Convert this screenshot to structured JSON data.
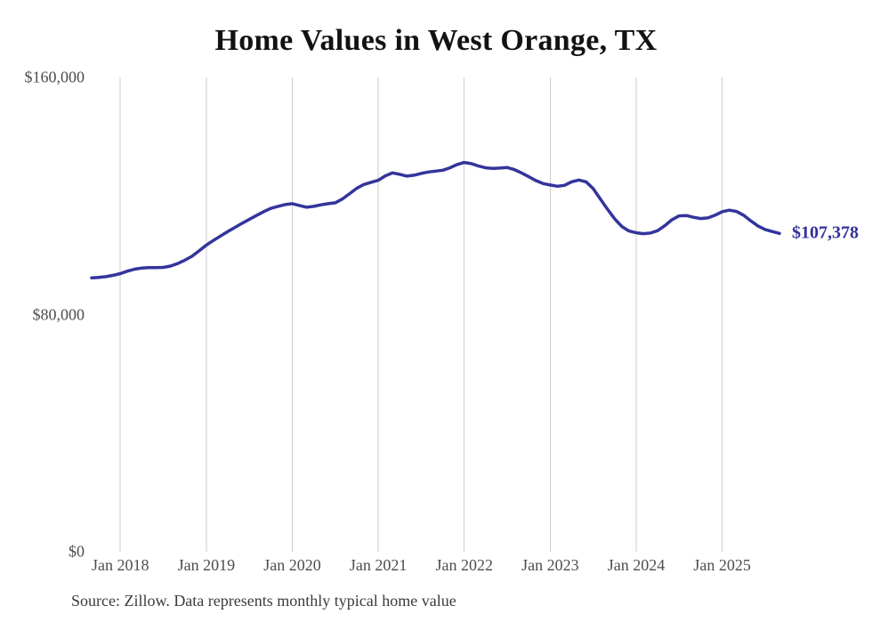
{
  "title": "Home Values in West Orange, TX",
  "source_note": "Source: Zillow. Data represents monthly typical home value",
  "colors": {
    "line": "#34349c",
    "end_label": "#31319b",
    "grid": "#cccccc",
    "axis_text": "#4d4d4d",
    "title_text": "#121212",
    "background": "#ffffff"
  },
  "y_axis": {
    "ticks": [
      {
        "label": "$160,000",
        "value": 160000
      },
      {
        "label": "$80,000",
        "value": 80000
      },
      {
        "label": "$0",
        "value": 0
      }
    ]
  },
  "x_axis": {
    "tick_labels": [
      "Jan 2018",
      "Jan 2019",
      "Jan 2020",
      "Jan 2021",
      "Jan 2022",
      "Jan 2023",
      "Jan 2024",
      "Jan 2025"
    ]
  },
  "chart_data": {
    "type": "line",
    "title": "Home Values in West Orange, TX",
    "xlabel": "",
    "ylabel": "",
    "ylim": [
      0,
      160000
    ],
    "grid": "vertical-only-january",
    "legend": "none",
    "series_name": "Monthly typical home value",
    "end_label": "$107,378",
    "last_value": 107378,
    "x": [
      "2017-09",
      "2017-10",
      "2017-11",
      "2017-12",
      "2018-01",
      "2018-02",
      "2018-03",
      "2018-04",
      "2018-05",
      "2018-06",
      "2018-07",
      "2018-08",
      "2018-09",
      "2018-10",
      "2018-11",
      "2018-12",
      "2019-01",
      "2019-02",
      "2019-03",
      "2019-04",
      "2019-05",
      "2019-06",
      "2019-07",
      "2019-08",
      "2019-09",
      "2019-10",
      "2019-11",
      "2019-12",
      "2020-01",
      "2020-02",
      "2020-03",
      "2020-04",
      "2020-05",
      "2020-06",
      "2020-07",
      "2020-08",
      "2020-09",
      "2020-10",
      "2020-11",
      "2020-12",
      "2021-01",
      "2021-02",
      "2021-03",
      "2021-04",
      "2021-05",
      "2021-06",
      "2021-07",
      "2021-08",
      "2021-09",
      "2021-10",
      "2021-11",
      "2021-12",
      "2022-01",
      "2022-02",
      "2022-03",
      "2022-04",
      "2022-05",
      "2022-06",
      "2022-07",
      "2022-08",
      "2022-09",
      "2022-10",
      "2022-11",
      "2022-12",
      "2023-01",
      "2023-02",
      "2023-03",
      "2023-04",
      "2023-05",
      "2023-06",
      "2023-07",
      "2023-08",
      "2023-09",
      "2023-10",
      "2023-11",
      "2023-12",
      "2024-01",
      "2024-02",
      "2024-03",
      "2024-04",
      "2024-05",
      "2024-06",
      "2024-07",
      "2024-08",
      "2024-09",
      "2024-10",
      "2024-11",
      "2024-12",
      "2025-01",
      "2025-02",
      "2025-03",
      "2025-04",
      "2025-05",
      "2025-06",
      "2025-07",
      "2025-08",
      "2025-09"
    ],
    "values": [
      92400,
      92550,
      92800,
      93250,
      93800,
      94650,
      95300,
      95700,
      95850,
      95850,
      95900,
      96350,
      97200,
      98350,
      99650,
      101500,
      103400,
      105000,
      106500,
      108000,
      109400,
      110800,
      112100,
      113400,
      114700,
      115800,
      116500,
      117100,
      117400,
      116800,
      116200,
      116500,
      117000,
      117400,
      117700,
      119000,
      120800,
      122600,
      123900,
      124600,
      125300,
      126800,
      127800,
      127300,
      126700,
      127000,
      127600,
      128100,
      128400,
      128700,
      129500,
      130600,
      131300,
      130900,
      130100,
      129500,
      129300,
      129400,
      129600,
      128900,
      127800,
      126500,
      125200,
      124200,
      123700,
      123300,
      123600,
      124800,
      125400,
      124800,
      122500,
      119000,
      115500,
      112300,
      109700,
      108200,
      107600,
      107300,
      107500,
      108300,
      110000,
      112000,
      113300,
      113400,
      112800,
      112400,
      112600,
      113500,
      114700,
      115200,
      114800,
      113500,
      111600,
      109900,
      108700,
      108000,
      107378
    ]
  }
}
